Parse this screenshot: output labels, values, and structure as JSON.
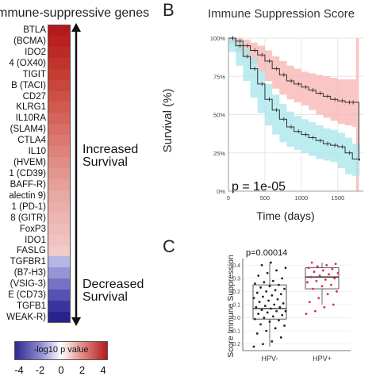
{
  "panel_a": {
    "letter": "",
    "title": "mmune-suppressive genes",
    "genes": [
      {
        "label": "BTLA",
        "color": "#b5191c"
      },
      {
        "label": "(BCMA)",
        "color": "#b8211f"
      },
      {
        "label": "IDO2",
        "color": "#bc2a25"
      },
      {
        "label": "4 (OX40)",
        "color": "#c0342c"
      },
      {
        "label": "TIGIT",
        "color": "#c53c33"
      },
      {
        "label": "B (TACI)",
        "color": "#c9463b"
      },
      {
        "label": "CD27",
        "color": "#cd5044"
      },
      {
        "label": "KLRG1",
        "color": "#d15a4f"
      },
      {
        "label": "IL10RA",
        "color": "#d5645a"
      },
      {
        "label": "(SLAM4)",
        "color": "#d86e65"
      },
      {
        "label": "CTLA4",
        "color": "#db786f"
      },
      {
        "label": "IL10",
        "color": "#de827a"
      },
      {
        "label": "(HVEM)",
        "color": "#e18c85"
      },
      {
        "label": "1 (CD39)",
        "color": "#e39690"
      },
      {
        "label": "BAFF-R)",
        "color": "#e69f9a"
      },
      {
        "label": "alectin 9)",
        "color": "#e8a8a4"
      },
      {
        "label": "1 (PD-1)",
        "color": "#eaafab"
      },
      {
        "label": "8 (GITR)",
        "color": "#ecb6b3"
      },
      {
        "label": "FoxP3",
        "color": "#eebdba"
      },
      {
        "label": "IDO1",
        "color": "#f0c3c1"
      },
      {
        "label": "FASLG",
        "color": "#f2cac8"
      },
      {
        "label": "TGFBR1",
        "color": "#b7b5e6"
      },
      {
        "label": "(B7-H3)",
        "color": "#9794d6"
      },
      {
        "label": "(VSIG-3)",
        "color": "#7672c4"
      },
      {
        "label": "E (CD73)",
        "color": "#5651b3"
      },
      {
        "label": "TGFB1",
        "color": "#3a34a0"
      },
      {
        "label": "WEAK-R)",
        "color": "#28228c"
      }
    ],
    "increased_line1": "Increased",
    "increased_line2": "Survival",
    "decreased_line1": "Decreased",
    "decreased_line2": "Survival",
    "legend_title": "-log10 p value",
    "legend_ticks": [
      "-4",
      "-2",
      "0",
      "2",
      "4"
    ],
    "legend_colors": {
      "low": "#2d2a8f",
      "mid": "#ffffff",
      "high": "#b5191c"
    }
  },
  "panel_b": {
    "letter": "B",
    "title": "Immune Suppression Score",
    "ylabel": "Survival (%)",
    "xlabel": "Time (days)",
    "pvalue": "p = 1e-05",
    "chart_data": {
      "type": "line",
      "title": "Immune Suppression Score",
      "xlabel": "Time (days)",
      "ylabel": "Survival (%)",
      "x_ticks": [
        "0",
        "500",
        "1000",
        "1500"
      ],
      "y_ticks": [
        "0%",
        "25%",
        "50%",
        "75%",
        "100%"
      ],
      "xlim": [
        0,
        1850
      ],
      "ylim": [
        0,
        100
      ],
      "grid": true,
      "series": [
        {
          "color": "#e8534d",
          "ci_color": "#f7b3b0",
          "x": [
            0,
            100,
            200,
            300,
            400,
            500,
            600,
            700,
            800,
            900,
            1000,
            1100,
            1200,
            1300,
            1400,
            1500,
            1600,
            1700,
            1750,
            1790
          ],
          "y": [
            100,
            98,
            95,
            92,
            89,
            85,
            80,
            76,
            72,
            70,
            68,
            66,
            64,
            62,
            60,
            59,
            58,
            58,
            58,
            20
          ],
          "ci_upper": [
            100,
            100,
            99,
            97,
            95,
            92,
            88,
            85,
            82,
            80,
            78,
            77,
            76,
            75,
            74,
            73,
            73,
            73,
            100,
            100
          ],
          "ci_lower": [
            100,
            96,
            91,
            87,
            83,
            78,
            72,
            67,
            63,
            60,
            58,
            56,
            53,
            50,
            48,
            46,
            44,
            43,
            42,
            0
          ]
        },
        {
          "color": "#1aa6a6",
          "ci_color": "#a5e6ea",
          "x": [
            0,
            100,
            200,
            300,
            400,
            500,
            600,
            700,
            800,
            900,
            1000,
            1100,
            1200,
            1300,
            1400,
            1500,
            1600,
            1700,
            1800
          ],
          "y": [
            100,
            95,
            88,
            80,
            70,
            60,
            53,
            47,
            42,
            39,
            37,
            35,
            33,
            31,
            30,
            29,
            25,
            21,
            20
          ],
          "ci_upper": [
            100,
            98,
            93,
            87,
            79,
            70,
            63,
            57,
            52,
            49,
            47,
            45,
            43,
            41,
            40,
            38,
            35,
            31,
            30
          ],
          "ci_lower": [
            100,
            91,
            82,
            72,
            61,
            51,
            43,
            37,
            32,
            29,
            27,
            25,
            23,
            21,
            20,
            19,
            15,
            11,
            10
          ]
        }
      ]
    }
  },
  "panel_c": {
    "letter": "C",
    "ylabel": "Score Immune Suppression",
    "pvalue": "p=0.00014",
    "chart_data": {
      "type": "scatter",
      "categories": [
        "HPV-",
        "HPV+"
      ],
      "ylabel": "Score Immune Suppression",
      "y_ticks": [
        "-0.2",
        "-0.1",
        "0.0",
        "0.1",
        "0.2",
        "0.3",
        "0.4"
      ],
      "ylim": [
        -0.25,
        0.45
      ],
      "grid": true,
      "boxes": [
        {
          "category": "HPV-",
          "min": -0.22,
          "q1": -0.01,
          "median": 0.07,
          "q3": 0.25,
          "max": 0.42,
          "point_color": "#222222"
        },
        {
          "category": "HPV+",
          "min": 0.1,
          "q1": 0.22,
          "median": 0.31,
          "q3": 0.38,
          "max": 0.42,
          "point_color": "#e0264a"
        }
      ],
      "points": {
        "HPV-": [
          -0.22,
          -0.2,
          -0.18,
          -0.15,
          -0.12,
          -0.1,
          -0.08,
          -0.06,
          -0.05,
          -0.03,
          -0.02,
          -0.01,
          0.0,
          0.01,
          0.02,
          0.03,
          0.04,
          0.05,
          0.05,
          0.06,
          0.07,
          0.08,
          0.08,
          0.09,
          0.1,
          0.11,
          0.12,
          0.13,
          0.14,
          0.15,
          0.16,
          0.17,
          0.18,
          0.19,
          0.2,
          0.21,
          0.22,
          0.23,
          0.24,
          0.25,
          0.26,
          0.27,
          0.28,
          0.3,
          0.32,
          0.34,
          0.36,
          0.38,
          0.4,
          0.42
        ],
        "HPV+": [
          0.03,
          0.05,
          0.08,
          0.1,
          0.12,
          0.15,
          0.18,
          0.2,
          0.22,
          0.24,
          0.25,
          0.27,
          0.28,
          0.29,
          0.3,
          0.31,
          0.32,
          0.33,
          0.34,
          0.35,
          0.36,
          0.37,
          0.38,
          0.39,
          0.4,
          0.41,
          0.42
        ]
      }
    }
  }
}
